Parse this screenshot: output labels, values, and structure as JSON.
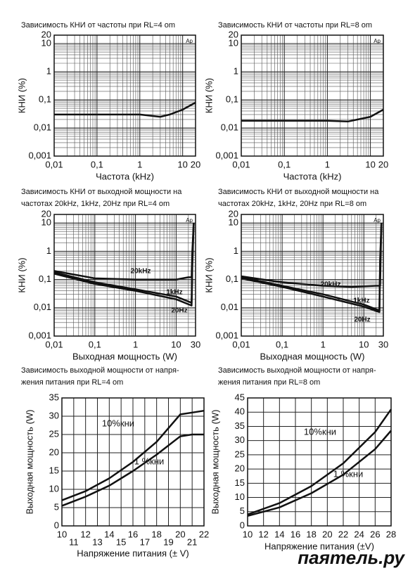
{
  "chart_data": [
    {
      "type": "line",
      "title": [
        "Зависимость КНИ от частоты при RL=4 om"
      ],
      "xlabel": "Частота (kHz)",
      "ylabel": "КНИ (%)",
      "corner_label": "Ap",
      "xscale": "log",
      "yscale": "log",
      "xlim": [
        0.01,
        20
      ],
      "ylim": [
        0.001,
        20
      ],
      "grid": true,
      "xticks": [
        {
          "value": 0.01,
          "label": "0,01"
        },
        {
          "value": 0.1,
          "label": "0,1"
        },
        1,
        10,
        20
      ],
      "yticks": [
        {
          "value": 0.001,
          "label": "0,001"
        },
        {
          "value": 0.01,
          "label": "0,01"
        },
        {
          "value": 0.1,
          "label": "0,1"
        },
        1,
        10,
        20
      ],
      "series": [
        {
          "color": "#111111",
          "x": [
            0.01,
            0.1,
            1,
            3,
            5,
            10,
            20
          ],
          "values": [
            0.03,
            0.03,
            0.03,
            0.025,
            0.03,
            0.045,
            0.08
          ]
        }
      ]
    },
    {
      "type": "line",
      "title": [
        "Зависимость КНИ от частоты при RL=8 om"
      ],
      "xlabel": "Частота (kHz)",
      "ylabel": "КНИ (%)",
      "corner_label": "Ap",
      "xscale": "log",
      "yscale": "log",
      "xlim": [
        0.01,
        20
      ],
      "ylim": [
        0.001,
        20
      ],
      "grid": true,
      "xticks": [
        {
          "value": 0.01,
          "label": "0,01"
        },
        {
          "value": 0.1,
          "label": "0,1"
        },
        1,
        10,
        20
      ],
      "yticks": [
        {
          "value": 0.001,
          "label": "0,001"
        },
        {
          "value": 0.01,
          "label": "0,01"
        },
        {
          "value": 0.1,
          "label": "0,1"
        },
        1,
        10,
        20
      ],
      "series": [
        {
          "color": "#111111",
          "x": [
            0.01,
            0.1,
            1,
            3,
            5,
            10,
            20
          ],
          "values": [
            0.018,
            0.018,
            0.018,
            0.017,
            0.02,
            0.025,
            0.045
          ]
        }
      ]
    },
    {
      "type": "line",
      "title": [
        "Зависимость КНИ от выходной мощности на",
        "частотах 20kHz, 1kHz, 20Hz при RL=4 om"
      ],
      "xlabel": "Выходная мощность (W)",
      "ylabel": "КНИ (%)",
      "corner_label": "Ap",
      "xscale": "log",
      "yscale": "log",
      "xlim": [
        0.01,
        30
      ],
      "ylim": [
        0.001,
        20
      ],
      "grid": true,
      "xticks": [
        {
          "value": 0.01,
          "label": "0,01"
        },
        {
          "value": 0.1,
          "label": "0,1"
        },
        1,
        10,
        30
      ],
      "yticks": [
        {
          "value": 0.001,
          "label": "0,001"
        },
        {
          "value": 0.01,
          "label": "0,01"
        },
        {
          "value": 0.1,
          "label": "0,1"
        },
        1,
        10,
        20
      ],
      "series": [
        {
          "name": "20kHz",
          "color": "#111111",
          "x": [
            0.01,
            0.1,
            1,
            10,
            20,
            24,
            25,
            27
          ],
          "values": [
            0.2,
            0.11,
            0.1,
            0.1,
            0.12,
            0.12,
            1,
            10
          ]
        },
        {
          "name": "1kHz",
          "color": "#111111",
          "x": [
            0.01,
            0.1,
            1,
            10,
            24,
            25,
            27
          ],
          "values": [
            0.18,
            0.08,
            0.045,
            0.025,
            0.015,
            0.5,
            10
          ]
        },
        {
          "name": "20Hz",
          "color": "#111111",
          "x": [
            0.01,
            0.1,
            1,
            10,
            24,
            25,
            27
          ],
          "values": [
            0.16,
            0.07,
            0.04,
            0.02,
            0.012,
            0.3,
            10
          ]
        }
      ]
    },
    {
      "type": "line",
      "title": [
        "Зависимость КНИ от выходной мощности на",
        "частотах 20kHz, 1kHz, 20Hz при RL=8 om"
      ],
      "xlabel": "Выходная мощность (W)",
      "ylabel": "КНИ (%)",
      "corner_label": "Ap",
      "xscale": "log",
      "yscale": "log",
      "xlim": [
        0.01,
        30
      ],
      "ylim": [
        0.001,
        20
      ],
      "grid": true,
      "xticks": [
        {
          "value": 0.01,
          "label": "0,01"
        },
        {
          "value": 0.1,
          "label": "0,1"
        },
        1,
        10,
        30
      ],
      "yticks": [
        {
          "value": 0.001,
          "label": "0,001"
        },
        {
          "value": 0.01,
          "label": "0,01"
        },
        {
          "value": 0.1,
          "label": "0,1"
        },
        1,
        10,
        20
      ],
      "series": [
        {
          "name": "20kHz",
          "color": "#111111",
          "x": [
            0.01,
            0.1,
            1,
            5,
            20,
            25,
            26,
            27
          ],
          "values": [
            0.13,
            0.08,
            0.06,
            0.055,
            0.06,
            0.06,
            1,
            10
          ]
        },
        {
          "name": "1kHz",
          "color": "#111111",
          "x": [
            0.01,
            0.1,
            1,
            10,
            24,
            25,
            27
          ],
          "values": [
            0.12,
            0.06,
            0.03,
            0.013,
            0.008,
            0.5,
            10
          ]
        },
        {
          "name": "20Hz",
          "color": "#111111",
          "x": [
            0.01,
            0.1,
            1,
            10,
            24,
            25,
            27
          ],
          "values": [
            0.11,
            0.055,
            0.025,
            0.011,
            0.007,
            0.3,
            10
          ]
        }
      ]
    },
    {
      "type": "line",
      "title": [
        "Зависимость выходной мощности от напря-",
        "жения питания при RL=4 om"
      ],
      "xlabel": "Напряжение питания (± V)",
      "ylabel": "Выходная мощность (W)",
      "xscale": "linear",
      "yscale": "linear",
      "xlim": [
        10,
        22
      ],
      "ylim": [
        0,
        35
      ],
      "grid": true,
      "xticks": [
        10,
        11,
        12,
        13,
        14,
        15,
        16,
        17,
        18,
        19,
        20,
        21,
        22
      ],
      "yticks": [
        0,
        5,
        10,
        15,
        20,
        25,
        30,
        35
      ],
      "series": [
        {
          "name": "10%кни",
          "color": "#111111",
          "x": [
            10,
            12,
            14,
            16,
            18,
            20,
            21,
            22
          ],
          "values": [
            7,
            9.5,
            13,
            17.5,
            23,
            30.5,
            31,
            31.5
          ]
        },
        {
          "name": "1 %кни",
          "color": "#111111",
          "x": [
            10,
            12,
            14,
            16,
            18,
            20,
            21,
            22
          ],
          "values": [
            5.5,
            8,
            11,
            15,
            19.5,
            24.5,
            25,
            25
          ]
        }
      ]
    },
    {
      "type": "line",
      "title": [
        "Зависимость выходной мощности от напря-",
        "жения питания при RL=8 om"
      ],
      "xlabel": "Напряжение питания (±V)",
      "ylabel": "Выходная мощность (W)",
      "xscale": "linear",
      "yscale": "linear",
      "xlim": [
        10,
        28
      ],
      "ylim": [
        0,
        45
      ],
      "grid": true,
      "xticks": [
        10,
        12,
        14,
        16,
        18,
        20,
        22,
        24,
        26,
        28
      ],
      "yticks": [
        0,
        5,
        10,
        15,
        20,
        25,
        30,
        35,
        40,
        45
      ],
      "series": [
        {
          "name": "10%кни",
          "color": "#111111",
          "x": [
            10,
            14,
            18,
            22,
            26,
            28
          ],
          "values": [
            4,
            8,
            14,
            22,
            33,
            41
          ]
        },
        {
          "name": "1 %кни",
          "color": "#111111",
          "x": [
            10,
            14,
            18,
            22,
            26,
            28
          ],
          "values": [
            3.5,
            6.5,
            11.5,
            18,
            27,
            33.5
          ]
        }
      ]
    }
  ],
  "watermark": "паятель.ру"
}
